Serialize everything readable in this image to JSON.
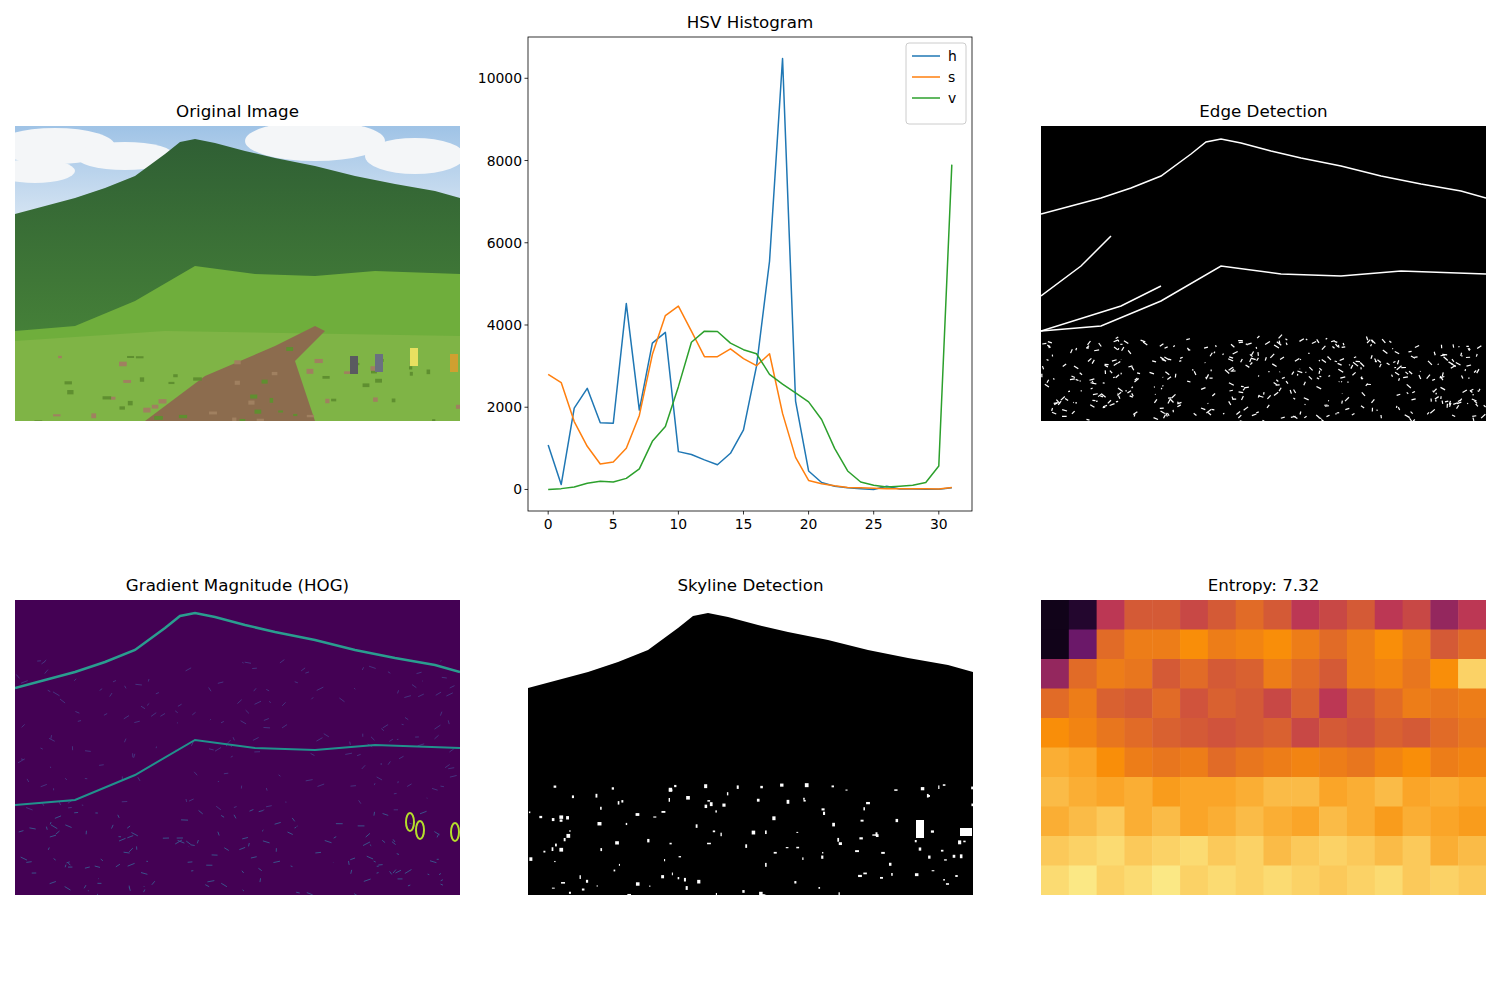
{
  "panels": [
    {
      "title": "Original Image"
    },
    {
      "title": "Edge Detection"
    },
    {
      "title": "Gradient Magnitude (HOG)"
    },
    {
      "title": "Skyline Detection"
    },
    {
      "title": "Entropy: 7.32",
      "cells": [
        [
          0.05,
          0.1,
          0.5,
          0.6,
          0.6,
          0.55,
          0.6,
          0.65,
          0.6,
          0.5,
          0.55,
          0.6,
          0.5,
          0.55,
          0.4,
          0.5
        ],
        [
          0.05,
          0.3,
          0.65,
          0.7,
          0.7,
          0.75,
          0.7,
          0.72,
          0.75,
          0.7,
          0.65,
          0.7,
          0.75,
          0.7,
          0.6,
          0.65
        ],
        [
          0.4,
          0.65,
          0.7,
          0.68,
          0.6,
          0.65,
          0.6,
          0.62,
          0.7,
          0.65,
          0.6,
          0.7,
          0.72,
          0.68,
          0.75,
          0.9
        ],
        [
          0.65,
          0.7,
          0.62,
          0.6,
          0.65,
          0.58,
          0.62,
          0.6,
          0.55,
          0.62,
          0.5,
          0.6,
          0.65,
          0.7,
          0.68,
          0.7
        ],
        [
          0.75,
          0.72,
          0.68,
          0.65,
          0.62,
          0.6,
          0.58,
          0.6,
          0.62,
          0.55,
          0.6,
          0.58,
          0.62,
          0.6,
          0.65,
          0.68
        ],
        [
          0.82,
          0.8,
          0.75,
          0.7,
          0.68,
          0.7,
          0.65,
          0.68,
          0.7,
          0.72,
          0.7,
          0.68,
          0.72,
          0.75,
          0.7,
          0.72
        ],
        [
          0.85,
          0.82,
          0.8,
          0.82,
          0.78,
          0.8,
          0.8,
          0.82,
          0.85,
          0.85,
          0.8,
          0.82,
          0.85,
          0.8,
          0.82,
          0.8
        ],
        [
          0.82,
          0.85,
          0.88,
          0.82,
          0.85,
          0.8,
          0.82,
          0.85,
          0.82,
          0.8,
          0.85,
          0.82,
          0.78,
          0.82,
          0.8,
          0.78
        ],
        [
          0.88,
          0.9,
          0.92,
          0.88,
          0.9,
          0.92,
          0.88,
          0.9,
          0.85,
          0.88,
          0.9,
          0.88,
          0.85,
          0.88,
          0.82,
          0.85
        ],
        [
          0.92,
          0.95,
          0.9,
          0.92,
          0.95,
          0.9,
          0.92,
          0.9,
          0.92,
          0.9,
          0.88,
          0.9,
          0.92,
          0.88,
          0.9,
          0.88
        ]
      ]
    }
  ],
  "chart_data": {
    "type": "line",
    "title": "HSV Histogram",
    "x": [
      0,
      1,
      2,
      3,
      4,
      5,
      6,
      7,
      8,
      9,
      10,
      11,
      12,
      13,
      14,
      15,
      16,
      17,
      18,
      19,
      20,
      21,
      22,
      23,
      24,
      25,
      26,
      27,
      28,
      29,
      30,
      31
    ],
    "series": [
      {
        "name": "h",
        "color": "#1f77b4",
        "values": [
          1080,
          120,
          1980,
          2460,
          1620,
          1610,
          4520,
          1930,
          3560,
          3820,
          920,
          850,
          720,
          600,
          880,
          1450,
          3000,
          5550,
          10480,
          2150,
          450,
          170,
          80,
          40,
          20,
          0,
          80,
          10,
          10,
          5,
          5,
          40
        ]
      },
      {
        "name": "s",
        "color": "#ff7f0e",
        "values": [
          2800,
          2600,
          1650,
          1050,
          620,
          670,
          1000,
          1800,
          3280,
          4230,
          4460,
          3850,
          3230,
          3230,
          3420,
          3180,
          3010,
          3300,
          1850,
          780,
          220,
          140,
          90,
          50,
          40,
          30,
          20,
          20,
          20,
          20,
          10,
          50
        ]
      },
      {
        "name": "v",
        "color": "#2ca02c",
        "values": [
          0,
          20,
          60,
          150,
          200,
          180,
          270,
          500,
          1170,
          1530,
          2500,
          3580,
          3850,
          3840,
          3560,
          3400,
          3300,
          2800,
          2560,
          2350,
          2130,
          1700,
          1000,
          450,
          180,
          100,
          60,
          80,
          100,
          170,
          570,
          7900
        ]
      }
    ],
    "xlim": [
      -1.55,
      32.55
    ],
    "xticks": [
      0,
      5,
      10,
      15,
      20,
      25,
      30
    ],
    "ylim": [
      -524,
      11004
    ],
    "yticks": [
      0,
      2000,
      4000,
      6000,
      8000,
      10000
    ],
    "legend": "upper right",
    "grid": false
  }
}
